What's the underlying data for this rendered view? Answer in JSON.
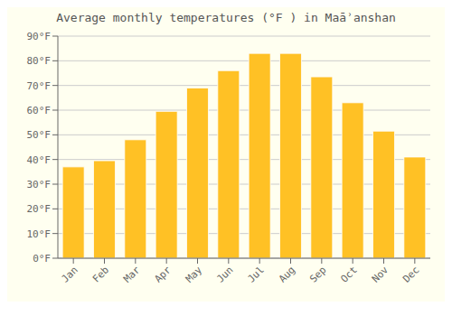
{
  "chart_data": {
    "type": "bar",
    "title": "Average monthly temperatures (°F ) in Maāʾanshan",
    "categories": [
      "Jan",
      "Feb",
      "Mar",
      "Apr",
      "May",
      "Jun",
      "Jul",
      "Aug",
      "Sep",
      "Oct",
      "Nov",
      "Dec"
    ],
    "values": [
      37,
      39.5,
      48,
      59.5,
      69,
      76,
      83,
      83,
      73.5,
      63,
      51.5,
      41
    ],
    "color": "#FFC125",
    "ylim": [
      0,
      90
    ],
    "yticks": [
      {
        "value": 0,
        "label": "0°F"
      },
      {
        "value": 10,
        "label": "10°F"
      },
      {
        "value": 20,
        "label": "20°F"
      },
      {
        "value": 30,
        "label": "30°F"
      },
      {
        "value": 40,
        "label": "40°F"
      },
      {
        "value": 50,
        "label": "50°F"
      },
      {
        "value": 60,
        "label": "60°F"
      },
      {
        "value": 70,
        "label": "70°F"
      },
      {
        "value": 80,
        "label": "80°F"
      },
      {
        "value": 90,
        "label": "90°F"
      }
    ],
    "grid": true
  }
}
